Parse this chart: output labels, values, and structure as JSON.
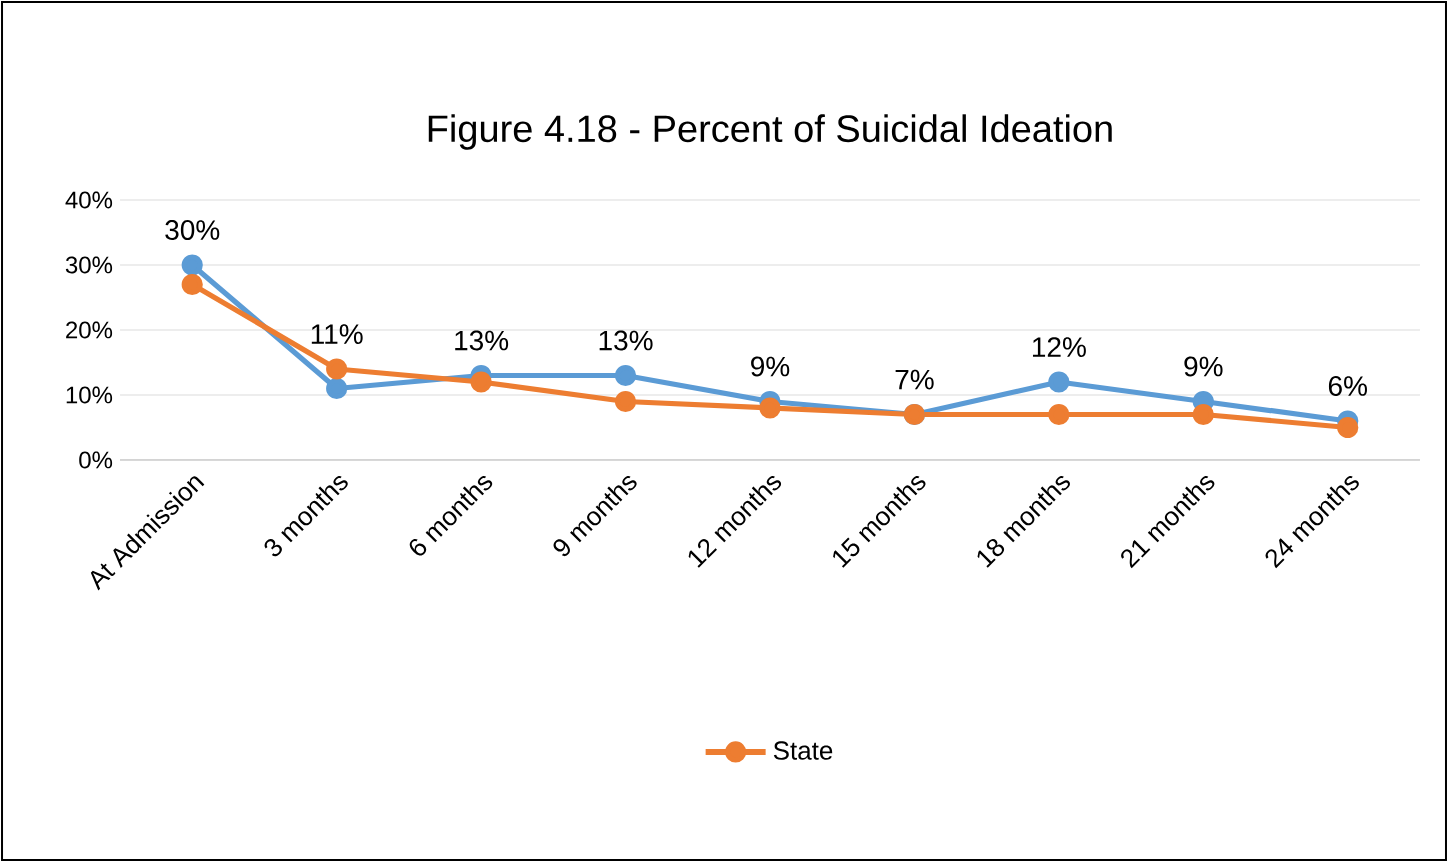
{
  "chart_data": {
    "type": "line",
    "title": "Figure 4.18 - Percent of Suicidal Ideation",
    "categories": [
      "At Admission",
      "3 months",
      "6 months",
      "9 months",
      "12 months",
      "15 months",
      "18 months",
      "21 months",
      "24 months"
    ],
    "series": [
      {
        "color": "#5b9bd5",
        "values": [
          30,
          11,
          13,
          13,
          9,
          7,
          12,
          9,
          6
        ],
        "value_labels": [
          "30%",
          "11%",
          "13%",
          "13%",
          "9%",
          "7%",
          "12%",
          "9%",
          "6%"
        ]
      },
      {
        "name": "State",
        "color": "#ed7d31",
        "values": [
          27,
          14,
          12,
          9,
          8,
          7,
          7,
          7,
          5
        ]
      }
    ],
    "ylim": [
      0,
      40
    ],
    "yticks": [
      {
        "value": 0,
        "label": "0%"
      },
      {
        "value": 10,
        "label": "10%"
      },
      {
        "value": 20,
        "label": "20%"
      },
      {
        "value": 30,
        "label": "30%"
      },
      {
        "value": 40,
        "label": "40%"
      }
    ],
    "grid": "y",
    "legend": "bottom",
    "marker": "circle",
    "line_style": "solid"
  }
}
